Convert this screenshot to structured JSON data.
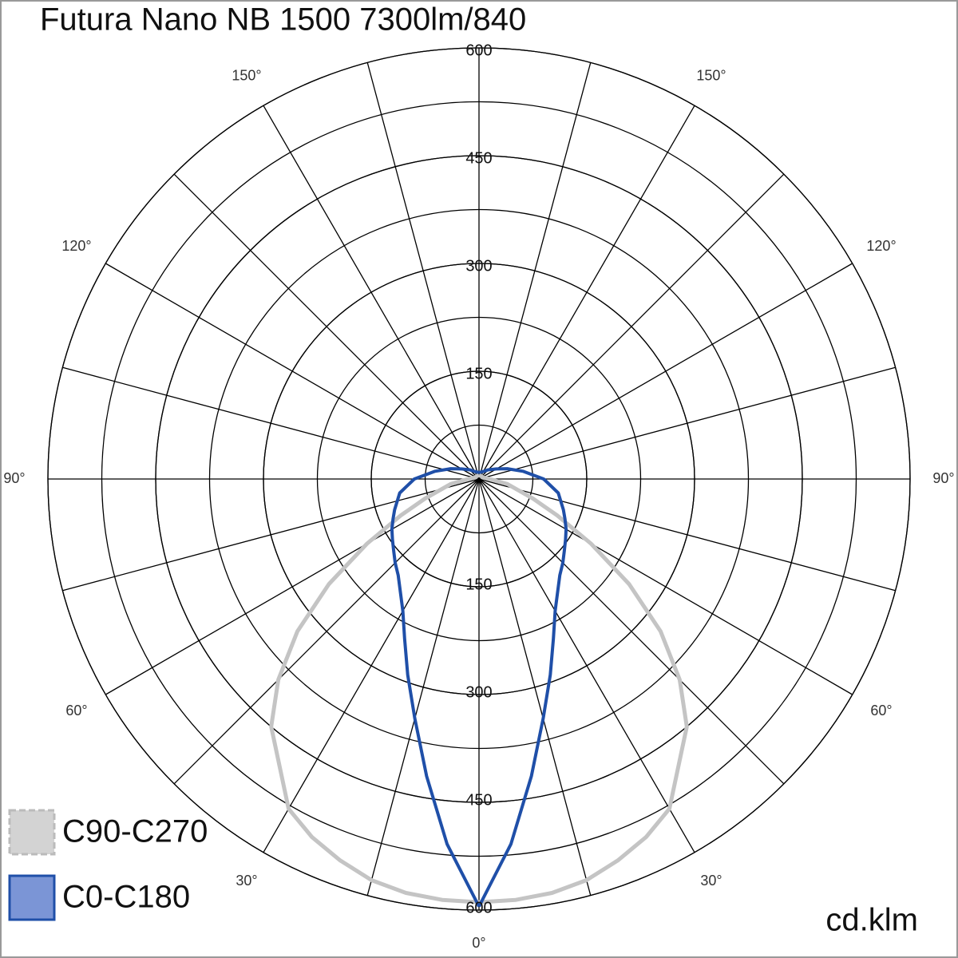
{
  "chart_data": {
    "type": "polar",
    "title": "Futura Nano NB 1500 7300lm/840",
    "unit": "cd.klm",
    "rlim": [
      0,
      600
    ],
    "rticks": [
      150,
      300,
      450,
      600
    ],
    "angle_ticks": [
      {
        "value": 0,
        "label": "0°"
      },
      {
        "value": 30,
        "label": "30°"
      },
      {
        "value": 60,
        "label": "60°"
      },
      {
        "value": 90,
        "label": "90°"
      },
      {
        "value": 120,
        "label": "120°"
      },
      {
        "value": 150,
        "label": "150°"
      }
    ],
    "x": [
      0,
      5,
      10,
      15,
      20,
      25,
      30,
      40,
      45,
      50,
      55,
      60,
      65,
      70,
      80,
      90,
      100,
      110,
      120,
      135,
      150,
      165,
      180
    ],
    "series": [
      {
        "name": "C90-C270",
        "color": "#c4c4c4",
        "values": [
          589,
          588,
          585,
          578,
          565,
          550,
          530,
          450,
          395,
          330,
          255,
          180,
          120,
          80,
          40,
          15,
          8,
          6,
          5,
          5,
          5,
          5,
          5
        ]
      },
      {
        "name": "C0-C180",
        "color": "#1f4fa8",
        "values": [
          595,
          510,
          420,
          345,
          290,
          245,
          212,
          175,
          165,
          155,
          147,
          140,
          132,
          125,
          112,
          90,
          62,
          42,
          28,
          18,
          12,
          10,
          9
        ]
      }
    ]
  }
}
